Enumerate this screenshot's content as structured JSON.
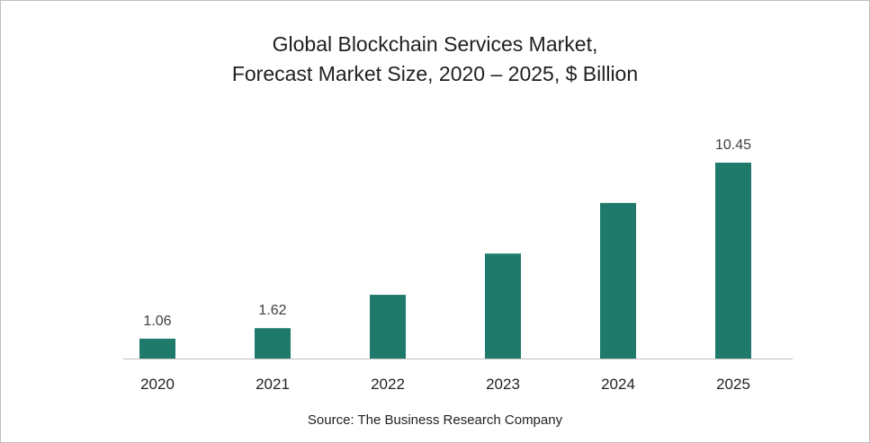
{
  "chart_data": {
    "type": "bar",
    "title": "Global Blockchain Services Market,",
    "subtitle": "Forecast Market Size, 2020 – 2025, $ Billion",
    "categories": [
      "2020",
      "2021",
      "2022",
      "2023",
      "2024",
      "2025"
    ],
    "values": [
      1.06,
      1.62,
      3.4,
      5.6,
      8.3,
      10.45
    ],
    "data_labels": [
      "1.06",
      "1.62",
      "",
      "",
      "",
      "10.45"
    ],
    "xlabel": "",
    "ylabel": "",
    "ylim": [
      0,
      10.45
    ],
    "bar_color": "#1f7a6b",
    "axis_color": "#bfbfbf",
    "grid": false,
    "legend": "none",
    "source": "Source: The Business Research Company"
  }
}
